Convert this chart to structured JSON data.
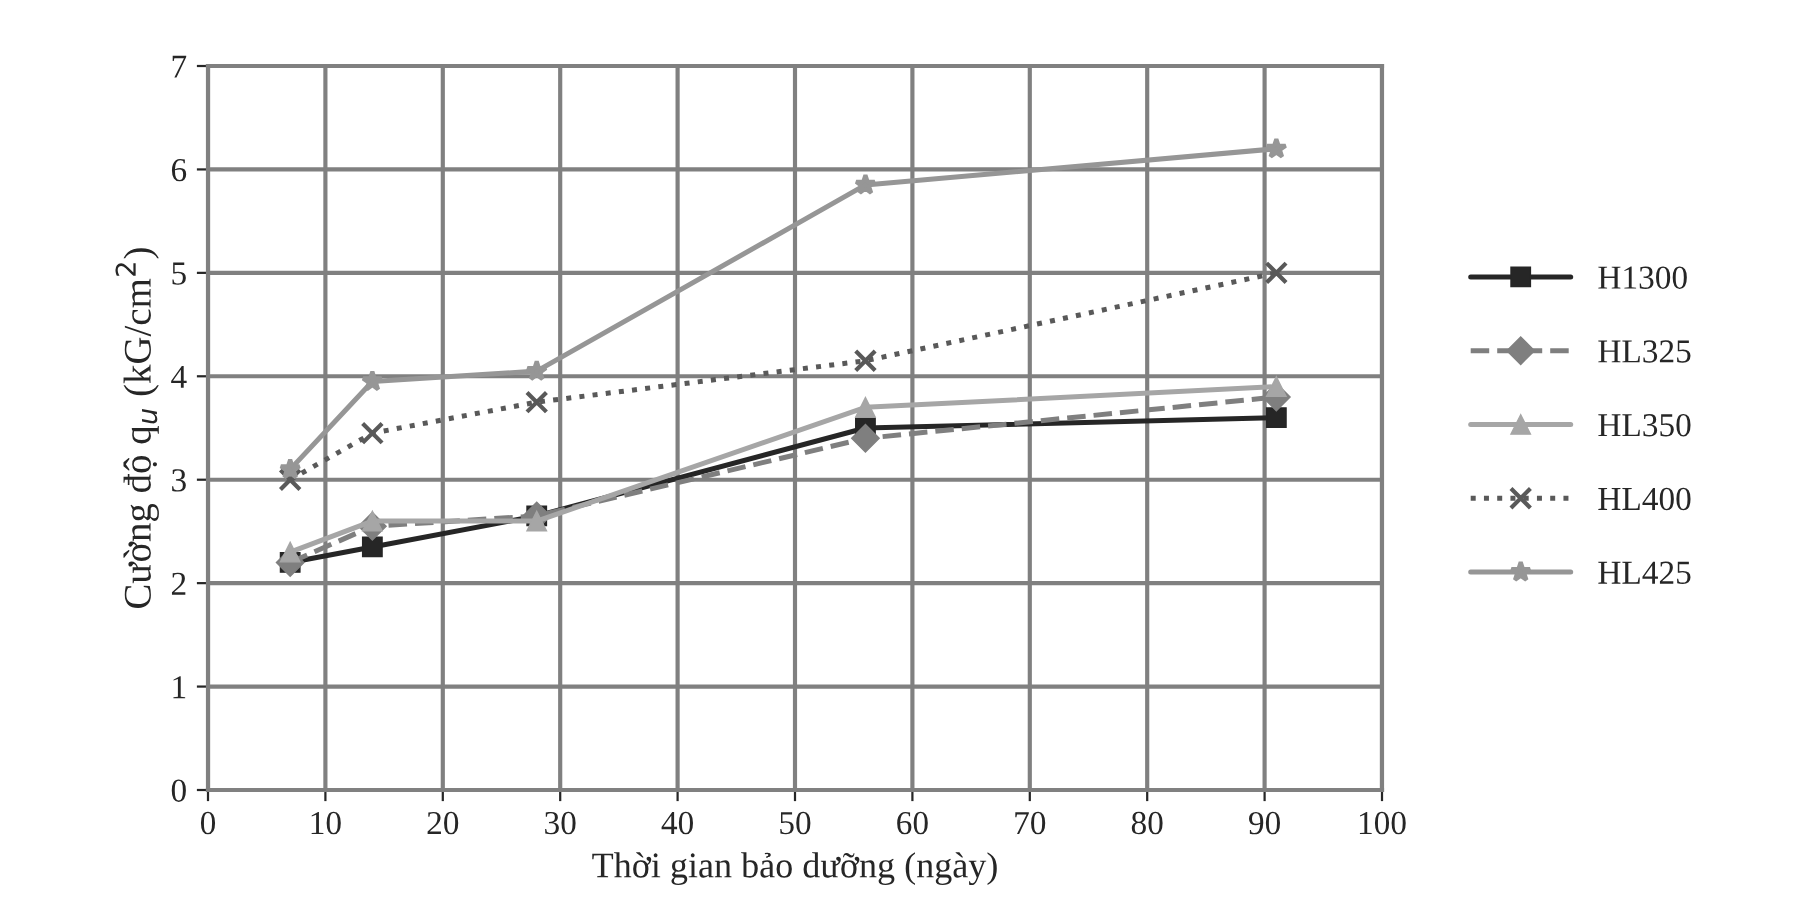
{
  "chart_data": {
    "type": "line",
    "xlabel": "Thời gian bảo dưỡng (ngày)",
    "ylabel": "Cường độ q$_{u}$ (kG/cm$^{2}$)",
    "x": [
      7,
      14,
      28,
      56,
      91
    ],
    "series": [
      {
        "name": "H1300",
        "color": "#262626",
        "marker": "square",
        "line_style": "solid",
        "values": [
          2.2,
          2.35,
          2.65,
          3.5,
          3.6
        ]
      },
      {
        "name": "HL325",
        "color": "#7f7f7f",
        "marker": "diamond",
        "line_style": "dashed",
        "values": [
          2.2,
          2.55,
          2.65,
          3.4,
          3.8
        ]
      },
      {
        "name": "HL350",
        "color": "#a6a6a6",
        "marker": "triangle",
        "line_style": "solid",
        "values": [
          2.3,
          2.6,
          2.6,
          3.7,
          3.9
        ]
      },
      {
        "name": "HL400",
        "color": "#595959",
        "marker": "cross",
        "line_style": "dotted",
        "values": [
          3.0,
          3.45,
          3.75,
          4.15,
          5.0
        ]
      },
      {
        "name": "HL425",
        "color": "#969696",
        "marker": "star",
        "line_style": "solid",
        "values": [
          3.1,
          3.95,
          4.05,
          5.85,
          6.2
        ]
      }
    ],
    "xlim": [
      0,
      100
    ],
    "xticks": [
      0,
      10,
      20,
      30,
      40,
      50,
      60,
      70,
      80,
      90,
      100
    ],
    "ylim": [
      0,
      7
    ],
    "yticks": [
      0,
      1,
      2,
      3,
      4,
      5,
      6,
      7
    ],
    "grid": true,
    "legend": "right"
  }
}
